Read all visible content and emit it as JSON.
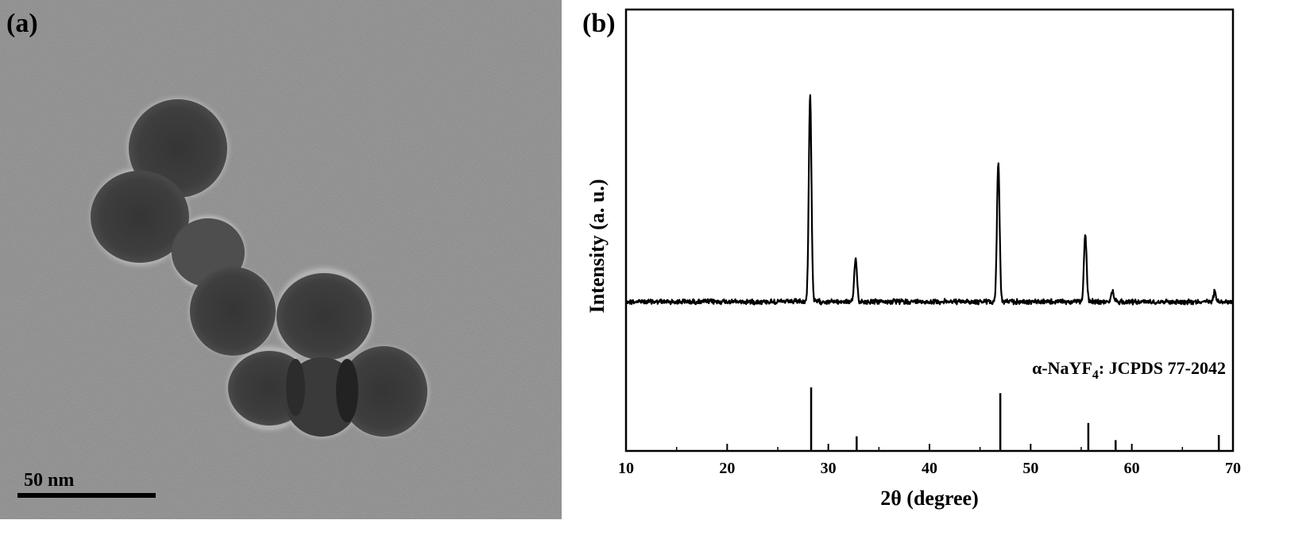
{
  "panel_a": {
    "label": "(a)",
    "scale_bar_text": "50 nm"
  },
  "chart_data": {
    "type": "line",
    "panel_label": "(b)",
    "xlabel": "2θ (degree)",
    "ylabel": "Intensity (a. u.)",
    "xlim": [
      10,
      70
    ],
    "xticks": [
      "10",
      "20",
      "30",
      "40",
      "50",
      "60",
      "70"
    ],
    "y_scale": "arbitrary units (no tick labels)",
    "grid": false,
    "legend": "none",
    "series": [
      {
        "kind": "measured-pattern",
        "baseline": 0,
        "peaks": [
          {
            "x": 28.2,
            "y": 100
          },
          {
            "x": 32.7,
            "y": 21
          },
          {
            "x": 46.8,
            "y": 67
          },
          {
            "x": 55.4,
            "y": 33
          },
          {
            "x": 58.1,
            "y": 5
          },
          {
            "x": 68.2,
            "y": 5
          }
        ]
      },
      {
        "kind": "reference-sticks",
        "label_parts": {
          "prefix": "α-NaYF",
          "subscript": "4",
          "suffix": ": JCPDS 77-2042"
        },
        "sticks": [
          {
            "x": 28.3,
            "y": 100
          },
          {
            "x": 32.8,
            "y": 23
          },
          {
            "x": 47.0,
            "y": 91
          },
          {
            "x": 55.7,
            "y": 44
          },
          {
            "x": 58.4,
            "y": 17
          },
          {
            "x": 68.6,
            "y": 25
          }
        ]
      }
    ]
  },
  "colors": {
    "tem_background": "#8a8a8a",
    "particle": "#3c3c3c",
    "ink": "#000000"
  }
}
